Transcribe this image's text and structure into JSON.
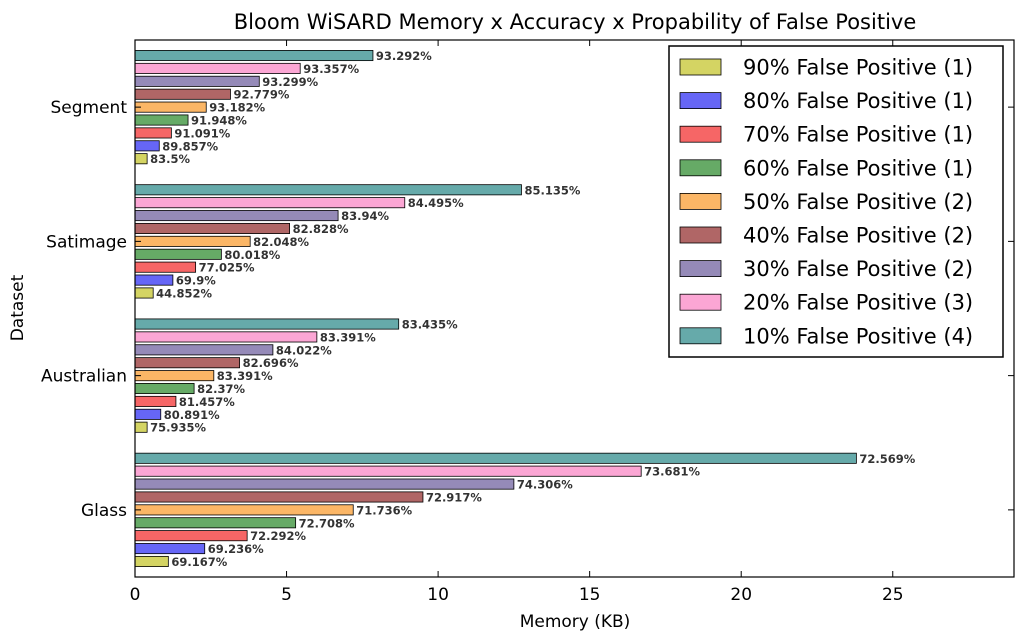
{
  "chart_data": {
    "type": "bar",
    "orientation": "horizontal",
    "title": "Bloom WiSARD Memory x Accuracy x Propability of False Positive",
    "xlabel": "Memory (KB)",
    "ylabel": "Dataset",
    "xlim": [
      0,
      29
    ],
    "xticks": [
      "0",
      "5",
      "10",
      "15",
      "20",
      "25"
    ],
    "grid": false,
    "legend_position": "top-right",
    "categories": [
      "Glass",
      "Australian",
      "Satimage",
      "Segment"
    ],
    "series": [
      {
        "name": "90% False Positive (1)",
        "color": "#d4d463",
        "values": [
          1.1,
          0.4,
          0.6,
          0.4
        ],
        "labels": [
          "69.167%",
          "75.935%",
          "44.852%",
          "83.5%"
        ]
      },
      {
        "name": "80% False Positive (1)",
        "color": "#6666f6",
        "values": [
          2.3,
          0.85,
          1.25,
          0.8
        ],
        "labels": [
          "69.236%",
          "80.891%",
          "69.9%",
          "89.857%"
        ]
      },
      {
        "name": "70% False Positive (1)",
        "color": "#f66666",
        "values": [
          3.7,
          1.35,
          2.0,
          1.2
        ],
        "labels": [
          "72.292%",
          "81.457%",
          "77.025%",
          "91.091%"
        ]
      },
      {
        "name": "60% False Positive (1)",
        "color": "#66aa66",
        "values": [
          5.3,
          1.95,
          2.85,
          1.75
        ],
        "labels": [
          "72.708%",
          "82.37%",
          "80.018%",
          "91.948%"
        ]
      },
      {
        "name": "50% False Positive (2)",
        "color": "#fbb666",
        "values": [
          7.2,
          2.6,
          3.8,
          2.35
        ],
        "labels": [
          "71.736%",
          "83.391%",
          "82.048%",
          "93.182%"
        ]
      },
      {
        "name": "40% False Positive (2)",
        "color": "#b06666",
        "values": [
          9.5,
          3.45,
          5.1,
          3.15
        ],
        "labels": [
          "72.917%",
          "82.696%",
          "82.828%",
          "92.779%"
        ]
      },
      {
        "name": "30% False Positive (2)",
        "color": "#958ab8",
        "values": [
          12.5,
          4.55,
          6.7,
          4.1
        ],
        "labels": [
          "74.306%",
          "84.022%",
          "83.94%",
          "93.299%"
        ]
      },
      {
        "name": "20% False Positive (3)",
        "color": "#fba6d4",
        "values": [
          16.7,
          6.0,
          8.9,
          5.45
        ],
        "labels": [
          "73.681%",
          "83.391%",
          "84.495%",
          "93.357%"
        ]
      },
      {
        "name": "10% False Positive (4)",
        "color": "#66aaaa",
        "values": [
          23.8,
          8.7,
          12.75,
          7.85
        ],
        "labels": [
          "72.569%",
          "83.435%",
          "85.135%",
          "93.292%"
        ]
      }
    ]
  }
}
